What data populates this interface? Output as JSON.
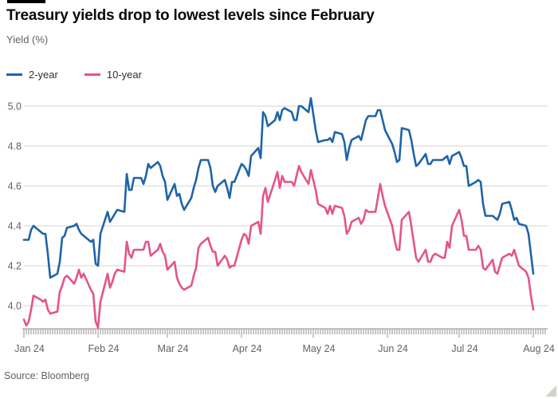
{
  "header": {
    "title": "Treasury yields drop to lowest levels since February",
    "subtitle": "Yield (%)"
  },
  "legend": {
    "items": [
      {
        "label": "2-year",
        "color": "#1f63a8"
      },
      {
        "label": "10-year",
        "color": "#e4548b"
      }
    ]
  },
  "footer": {
    "source": "Source: Bloomberg"
  },
  "icons": {
    "corner": "resize-corner-triangle"
  },
  "colors": {
    "grid": "#d7d3cb",
    "axis": "#96918b",
    "tick_label": "#66615b",
    "background": "#ffffff"
  },
  "chart_data": {
    "type": "line",
    "title": "Treasury yields drop to lowest levels since February",
    "xlabel": "",
    "ylabel": "Yield (%)",
    "ylim": [
      3.88,
      5.06
    ],
    "grid": "horizontal",
    "legend_position": "top-left",
    "frequency": "weekdays (Mon-Fri), Jan 1 2024 - Aug 1 2024",
    "y_axis": {
      "ticks": [
        {
          "label": "5.0",
          "value": 5.0
        },
        {
          "label": "4.8",
          "value": 4.8
        },
        {
          "label": "4.6",
          "value": 4.6
        },
        {
          "label": "4.4",
          "value": 4.4
        },
        {
          "label": "4.2",
          "value": 4.2
        },
        {
          "label": "4.0",
          "value": 4.0
        }
      ]
    },
    "x_axis": {
      "tick_unit": "day",
      "days_total": 218,
      "months": [
        {
          "label": "Jan 24",
          "day": 0
        },
        {
          "label": "Feb 24",
          "day": 31
        },
        {
          "label": "Mar 24",
          "day": 60
        },
        {
          "label": "Apr 24",
          "day": 91
        },
        {
          "label": "May 24",
          "day": 121
        },
        {
          "label": "Jun 24",
          "day": 152
        },
        {
          "label": "Jul 24",
          "day": 182
        },
        {
          "label": "Aug 24",
          "day": 213
        }
      ]
    },
    "series": [
      {
        "name": "2-year",
        "color": "#1f63a8",
        "values": [
          4.33,
          4.33,
          4.33,
          4.38,
          4.4,
          4.37,
          4.36,
          4.36,
          4.26,
          4.14,
          4.16,
          4.22,
          4.34,
          4.35,
          4.39,
          4.4,
          4.41,
          4.38,
          4.36,
          4.35,
          4.32,
          4.33,
          4.21,
          4.2,
          4.36,
          4.47,
          4.42,
          4.44,
          4.46,
          4.48,
          4.47,
          4.66,
          4.58,
          4.58,
          4.64,
          4.64,
          4.61,
          4.65,
          4.71,
          4.69,
          4.72,
          4.7,
          4.65,
          4.62,
          4.53,
          4.61,
          4.55,
          4.56,
          4.51,
          4.48,
          4.54,
          4.59,
          4.63,
          4.69,
          4.73,
          4.73,
          4.69,
          4.6,
          4.57,
          4.6,
          4.63,
          4.59,
          4.54,
          4.62,
          4.62,
          4.71,
          4.7,
          4.68,
          4.65,
          4.75,
          4.79,
          4.74,
          4.97,
          4.95,
          4.9,
          4.93,
          4.97,
          4.93,
          4.98,
          4.99,
          4.97,
          4.93,
          4.93,
          5.0,
          5.0,
          4.97,
          5.04,
          4.96,
          4.88,
          4.82,
          4.83,
          4.83,
          4.84,
          4.82,
          4.87,
          4.86,
          4.82,
          4.73,
          4.79,
          4.83,
          4.85,
          4.83,
          4.88,
          4.93,
          4.95,
          4.95,
          4.98,
          4.98,
          4.93,
          4.88,
          4.81,
          4.77,
          4.72,
          4.73,
          4.89,
          4.88,
          4.83,
          4.76,
          4.7,
          4.71,
          4.76,
          4.71,
          4.71,
          4.73,
          4.73,
          4.73,
          4.74,
          4.75,
          4.71,
          4.75,
          4.77,
          4.74,
          4.7,
          4.7,
          4.6,
          4.62,
          4.63,
          4.62,
          4.51,
          4.45,
          4.45,
          4.44,
          4.43,
          4.46,
          4.51,
          4.52,
          4.48,
          4.43,
          4.44,
          4.41,
          4.4,
          4.36,
          4.26,
          4.16
        ]
      },
      {
        "name": "10-year",
        "color": "#e4548b",
        "values": [
          3.93,
          3.9,
          3.92,
          3.98,
          4.05,
          4.03,
          4.02,
          4.03,
          3.98,
          3.96,
          3.97,
          4.07,
          4.1,
          4.14,
          4.15,
          4.11,
          4.14,
          4.18,
          4.14,
          4.16,
          4.08,
          4.06,
          3.92,
          3.89,
          4.02,
          4.16,
          4.09,
          4.12,
          4.16,
          4.18,
          4.17,
          4.32,
          4.26,
          4.24,
          4.28,
          4.28,
          4.28,
          4.32,
          4.32,
          4.25,
          4.28,
          4.31,
          4.27,
          4.25,
          4.18,
          4.22,
          4.14,
          4.11,
          4.09,
          4.08,
          4.1,
          4.15,
          4.19,
          4.29,
          4.31,
          4.34,
          4.3,
          4.27,
          4.27,
          4.2,
          4.25,
          4.23,
          4.19,
          4.2,
          4.2,
          4.33,
          4.36,
          4.35,
          4.31,
          4.4,
          4.42,
          4.36,
          4.55,
          4.59,
          4.52,
          4.63,
          4.67,
          4.59,
          4.65,
          4.62,
          4.62,
          4.6,
          4.65,
          4.7,
          4.67,
          4.61,
          4.68,
          4.63,
          4.58,
          4.51,
          4.49,
          4.46,
          4.5,
          4.46,
          4.5,
          4.49,
          4.45,
          4.36,
          4.38,
          4.42,
          4.44,
          4.41,
          4.43,
          4.48,
          4.47,
          4.47,
          4.54,
          4.61,
          4.55,
          4.5,
          4.4,
          4.33,
          4.28,
          4.28,
          4.43,
          4.47,
          4.4,
          4.32,
          4.24,
          4.22,
          4.28,
          4.22,
          4.22,
          4.25,
          4.26,
          4.24,
          4.24,
          4.32,
          4.29,
          4.4,
          4.48,
          4.43,
          4.35,
          4.35,
          4.28,
          4.28,
          4.3,
          4.28,
          4.19,
          4.18,
          4.23,
          4.17,
          4.16,
          4.2,
          4.24,
          4.26,
          4.25,
          4.28,
          4.24,
          4.2,
          4.17,
          4.14,
          4.05,
          3.98
        ]
      }
    ]
  }
}
